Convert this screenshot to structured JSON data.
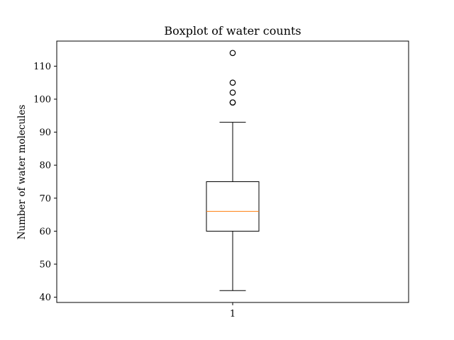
{
  "chart_data": {
    "type": "boxplot",
    "title": "Boxplot of water counts",
    "xlabel": "",
    "ylabel": "Number of water molecules",
    "categories": [
      "1"
    ],
    "ylim": [
      38.4,
      117.6
    ],
    "yticks": [
      40,
      50,
      60,
      70,
      80,
      90,
      100,
      110
    ],
    "ytick_labels": [
      "40",
      "50",
      "60",
      "70",
      "80",
      "90",
      "100",
      "110"
    ],
    "boxes": [
      {
        "category": "1",
        "whisker_low": 42,
        "q1": 60,
        "median": 66,
        "q3": 75,
        "whisker_high": 93,
        "outliers": [
          99,
          99,
          102,
          105,
          114
        ]
      }
    ],
    "grid": false,
    "colors": {
      "box": "#000000",
      "median": "#ff7f0e",
      "outlier": "#000000"
    }
  }
}
